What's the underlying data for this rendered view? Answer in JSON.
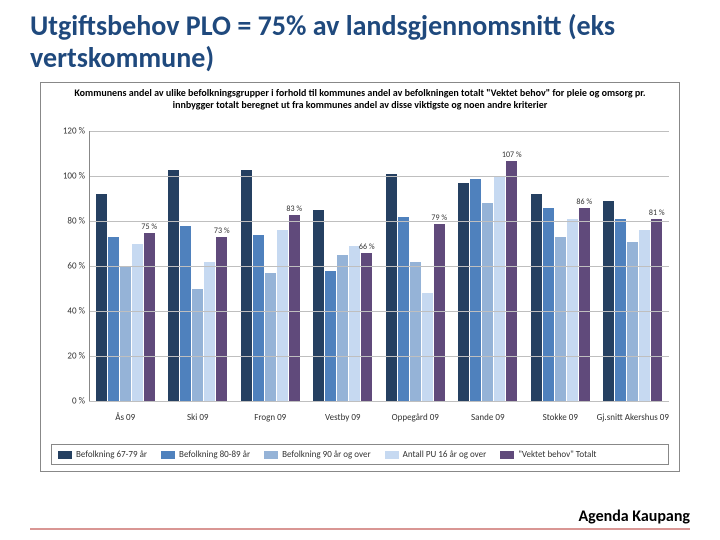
{
  "title": "Utgiftsbehov PLO = 75% av landsgjennomsnitt (eks vertskommune)",
  "chart": {
    "type": "bar-grouped",
    "title": "Kommunens andel av ulike befolkningsgrupper i forhold til kommunes andel av befolkningen totalt\n\"Vektet behov\" for pleie og omsorg pr. innbygger totalt beregnet ut fra kommunes andel av disse viktigste og noen andre kriterier",
    "ylabel_suffix": "%",
    "ylim": [
      0,
      120
    ],
    "ytick_step": 20,
    "grid_color": "#bfbfbf",
    "axis_color": "#888888",
    "background": "#ffffff",
    "series": [
      {
        "name": "Befolkning 67-79 år",
        "color": "#254061"
      },
      {
        "name": "Befolkning 80-89 år",
        "color": "#4f81bd"
      },
      {
        "name": "Befolkning 90 år og over",
        "color": "#95b3d7"
      },
      {
        "name": "Antall PU 16 år og over",
        "color": "#c6d9f1"
      },
      {
        "name": "\"Vektet behov\" Totalt",
        "color": "#604a7b"
      }
    ],
    "categories": [
      {
        "label": "Ås 09",
        "values": [
          92,
          73,
          60,
          70,
          75
        ],
        "callout_index": 4,
        "callout": "75 %"
      },
      {
        "label": "Ski 09",
        "values": [
          103,
          78,
          50,
          62,
          73
        ],
        "callout_index": 4,
        "callout": "73 %"
      },
      {
        "label": "Frogn 09",
        "values": [
          103,
          74,
          57,
          76,
          83
        ],
        "callout_index": 4,
        "callout": "83 %"
      },
      {
        "label": "Vestby 09",
        "values": [
          85,
          58,
          65,
          69,
          66
        ],
        "callout_index": 4,
        "callout": "66 %"
      },
      {
        "label": "Oppegård 09",
        "values": [
          101,
          82,
          62,
          48,
          79
        ],
        "callout_index": 4,
        "callout": "79 %"
      },
      {
        "label": "Sande 09",
        "values": [
          97,
          99,
          88,
          100,
          107
        ],
        "callout_index": 4,
        "callout": "107 %"
      },
      {
        "label": "Stokke 09",
        "values": [
          92,
          86,
          73,
          81,
          86
        ],
        "callout_index": 4,
        "callout": "86 %"
      },
      {
        "label": "Gj.snitt Akershus 09",
        "values": [
          89,
          81,
          71,
          76,
          81
        ],
        "callout_index": 4,
        "callout": "81 %"
      }
    ]
  },
  "footer": "Agenda Kaupang",
  "footer_line_color": "#d99694"
}
